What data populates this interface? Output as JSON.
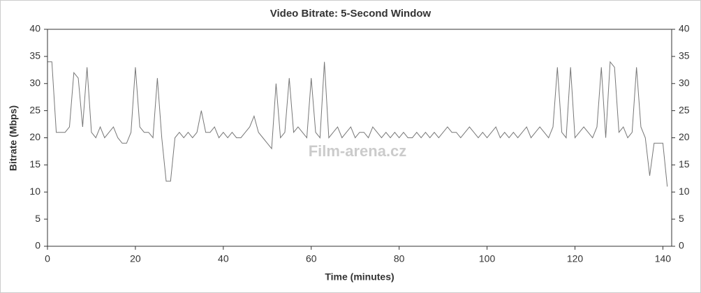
{
  "chart_data": {
    "type": "line",
    "title": "Video Bitrate: 5-Second Window",
    "x_label": "Time (minutes)",
    "y_label": "Bitrate (Mbps)",
    "watermark": "Film-arena.cz",
    "color": "#777777",
    "x": [
      0,
      1,
      2,
      3,
      4,
      5,
      6,
      7,
      8,
      9,
      10,
      11,
      12,
      13,
      14,
      15,
      16,
      17,
      18,
      19,
      20,
      21,
      22,
      23,
      24,
      25,
      26,
      27,
      28,
      29,
      30,
      31,
      32,
      33,
      34,
      35,
      36,
      37,
      38,
      39,
      40,
      41,
      42,
      43,
      44,
      45,
      46,
      47,
      48,
      49,
      50,
      51,
      52,
      53,
      54,
      55,
      56,
      57,
      58,
      59,
      60,
      61,
      62,
      63,
      64,
      65,
      66,
      67,
      68,
      69,
      70,
      71,
      72,
      73,
      74,
      75,
      76,
      77,
      78,
      79,
      80,
      81,
      82,
      83,
      84,
      85,
      86,
      87,
      88,
      89,
      90,
      91,
      92,
      93,
      94,
      95,
      96,
      97,
      98,
      99,
      100,
      101,
      102,
      103,
      104,
      105,
      106,
      107,
      108,
      109,
      110,
      111,
      112,
      113,
      114,
      115,
      116,
      117,
      118,
      119,
      120,
      121,
      122,
      123,
      124,
      125,
      126,
      127,
      128,
      129,
      130,
      131,
      132,
      133,
      134,
      135,
      136,
      137,
      138,
      139,
      140,
      141
    ],
    "values": [
      34,
      34,
      21,
      21,
      21,
      22,
      32,
      31,
      22,
      33,
      21,
      20,
      22,
      20,
      21,
      22,
      20,
      19,
      19,
      21,
      33,
      22,
      21,
      21,
      20,
      31,
      20,
      12,
      12,
      20,
      21,
      20,
      21,
      20,
      21,
      25,
      21,
      21,
      22,
      20,
      21,
      20,
      21,
      20,
      20,
      21,
      22,
      24,
      21,
      20,
      19,
      18,
      30,
      20,
      21,
      31,
      21,
      22,
      21,
      20,
      31,
      21,
      20,
      34,
      20,
      21,
      22,
      20,
      21,
      22,
      20,
      21,
      21,
      20,
      22,
      21,
      20,
      21,
      20,
      21,
      20,
      21,
      20,
      20,
      21,
      20,
      21,
      20,
      21,
      20,
      21,
      22,
      21,
      21,
      20,
      21,
      22,
      21,
      20,
      21,
      20,
      21,
      22,
      20,
      21,
      20,
      21,
      20,
      21,
      22,
      20,
      21,
      22,
      21,
      20,
      22,
      33,
      21,
      20,
      33,
      20,
      21,
      22,
      21,
      20,
      22,
      33,
      20,
      34,
      33,
      21,
      22,
      20,
      21,
      33,
      22,
      20,
      13,
      19,
      19,
      19,
      11
    ],
    "xlim": [
      0,
      142
    ],
    "ylim": [
      0,
      40
    ],
    "xticks": [
      0,
      20,
      40,
      60,
      80,
      100,
      120,
      140
    ],
    "yticks": [
      0,
      5,
      10,
      15,
      20,
      25,
      30,
      35,
      40
    ]
  }
}
